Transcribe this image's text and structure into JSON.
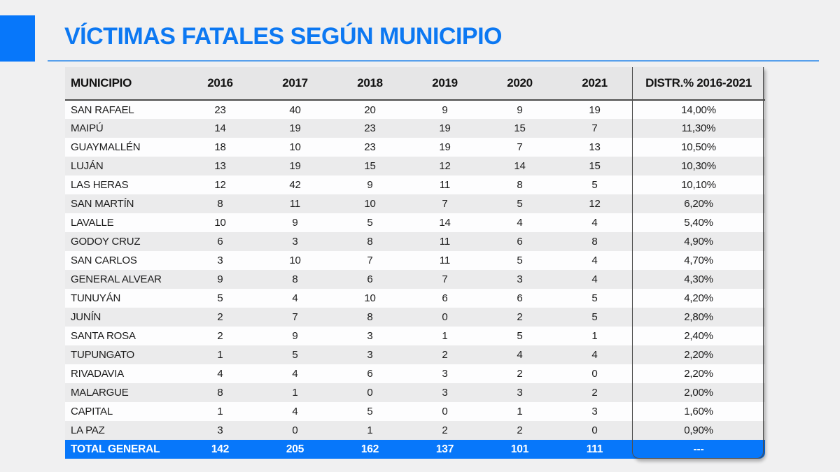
{
  "accent_color": "#0777fa",
  "header": {
    "title": "VÍCTIMAS FATALES SEGÚN MUNICIPIO"
  },
  "chart_data": {
    "type": "table",
    "title": "VÍCTIMAS FATALES SEGÚN MUNICIPIO",
    "columns": [
      "MUNICIPIO",
      "2016",
      "2017",
      "2018",
      "2019",
      "2020",
      "2021",
      "DISTR.% 2016-2021"
    ],
    "rows": [
      [
        "SAN RAFAEL",
        "23",
        "40",
        "20",
        "9",
        "9",
        "19",
        "14,00%"
      ],
      [
        "MAIPÚ",
        "14",
        "19",
        "23",
        "19",
        "15",
        "7",
        "11,30%"
      ],
      [
        "GUAYMALLÉN",
        "18",
        "10",
        "23",
        "19",
        "7",
        "13",
        "10,50%"
      ],
      [
        "LUJÁN",
        "13",
        "19",
        "15",
        "12",
        "14",
        "15",
        "10,30%"
      ],
      [
        "LAS HERAS",
        "12",
        "42",
        "9",
        "11",
        "8",
        "5",
        "10,10%"
      ],
      [
        "SAN MARTÍN",
        "8",
        "11",
        "10",
        "7",
        "5",
        "12",
        "6,20%"
      ],
      [
        "LAVALLE",
        "10",
        "9",
        "5",
        "14",
        "4",
        "4",
        "5,40%"
      ],
      [
        "GODOY CRUZ",
        "6",
        "3",
        "8",
        "11",
        "6",
        "8",
        "4,90%"
      ],
      [
        "SAN CARLOS",
        "3",
        "10",
        "7",
        "11",
        "5",
        "4",
        "4,70%"
      ],
      [
        "GENERAL ALVEAR",
        "9",
        "8",
        "6",
        "7",
        "3",
        "4",
        "4,30%"
      ],
      [
        "TUNUYÁN",
        "5",
        "4",
        "10",
        "6",
        "6",
        "5",
        "4,20%"
      ],
      [
        "JUNÍN",
        "2",
        "7",
        "8",
        "0",
        "2",
        "5",
        "2,80%"
      ],
      [
        "SANTA ROSA",
        "2",
        "9",
        "3",
        "1",
        "5",
        "1",
        "2,40%"
      ],
      [
        "TUPUNGATO",
        "1",
        "5",
        "3",
        "2",
        "4",
        "4",
        "2,20%"
      ],
      [
        "RIVADAVIA",
        "4",
        "4",
        "6",
        "3",
        "2",
        "0",
        "2,20%"
      ],
      [
        "MALARGUE",
        "8",
        "1",
        "0",
        "3",
        "3",
        "2",
        "2,00%"
      ],
      [
        "CAPITAL",
        "1",
        "4",
        "5",
        "0",
        "1",
        "3",
        "1,60%"
      ],
      [
        "LA PAZ",
        "3",
        "0",
        "1",
        "2",
        "2",
        "0",
        "0,90%"
      ]
    ],
    "total_row": [
      "TOTAL GENERAL",
      "142",
      "205",
      "162",
      "137",
      "101",
      "111",
      "---"
    ]
  }
}
